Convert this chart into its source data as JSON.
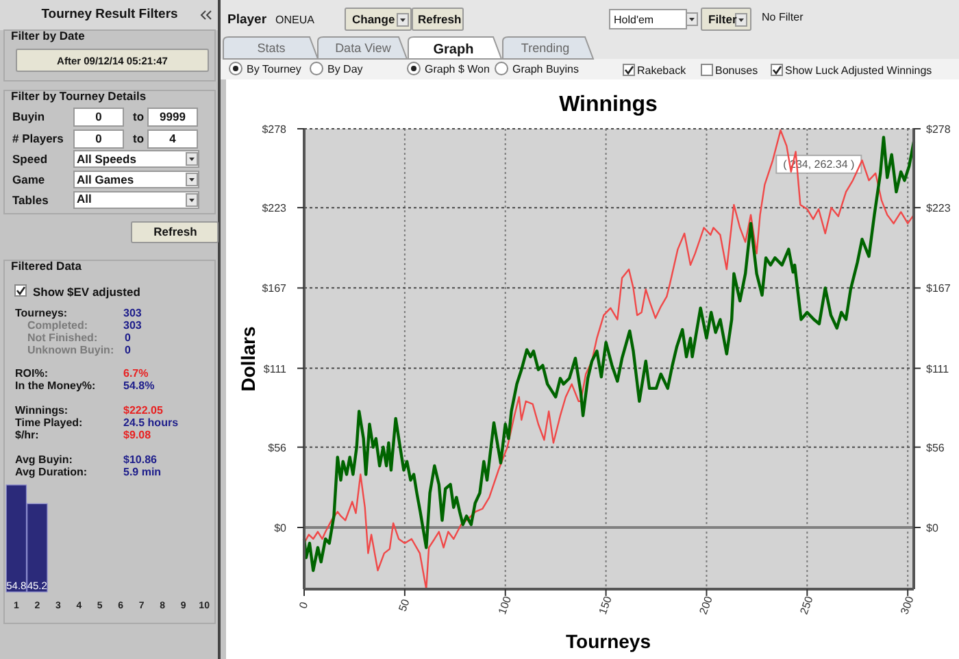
{
  "chart_data": [
    {
      "type": "line",
      "title": "Winnings",
      "xlabel": "Tourneys",
      "ylabel": "Dollars",
      "xlim": [
        0,
        303
      ],
      "xticks": [
        0,
        50,
        100,
        150,
        200,
        250,
        300
      ],
      "ylim": [
        -43,
        278
      ],
      "yticks": [
        {
          "value": 0,
          "label": "$0"
        },
        {
          "value": 56,
          "label": "$56"
        },
        {
          "value": 111,
          "label": "$111"
        },
        {
          "value": 167,
          "label": "$167"
        },
        {
          "value": 223,
          "label": "$223"
        },
        {
          "value": 278,
          "label": "$278"
        }
      ],
      "y2lim": [
        -43,
        278
      ],
      "y2ticks": [
        {
          "value": 0,
          "label": "$0"
        },
        {
          "value": 56,
          "label": "$56"
        },
        {
          "value": 111,
          "label": "$111"
        },
        {
          "value": 167,
          "label": "$167"
        },
        {
          "value": 223,
          "label": "$223"
        },
        {
          "value": 278,
          "label": "$278"
        }
      ],
      "grid": true,
      "ref_lines": [
        {
          "axis": "y",
          "value": 0,
          "color": "#808080"
        }
      ],
      "annotations": [
        {
          "text": "( 234, 262.34 )",
          "x": 234,
          "y": 262.34
        }
      ],
      "series": [
        {
          "color": "#f04848",
          "x": [
            0,
            2.3,
            4.5,
            6.8,
            9,
            10.6,
            13.6,
            16.6,
            18.2,
            20.5,
            23.9,
            25.7,
            28,
            30.2,
            31.8,
            33.4,
            36.6,
            39.8,
            42.5,
            44.3,
            47,
            50,
            53.4,
            57.5,
            60.7,
            62,
            64.8,
            67,
            69.3,
            71.6,
            74.3,
            78,
            80.7,
            85.2,
            88.6,
            92,
            96.6,
            101,
            104.5,
            106.8,
            108,
            110.2,
            113.6,
            116.4,
            119.3,
            121.6,
            123.9,
            127.3,
            130,
            133,
            136.4,
            137.5,
            140,
            143,
            145.5,
            148.9,
            152.3,
            155.7,
            158,
            161.4,
            163.6,
            165.5,
            167.7,
            169.8,
            171.6,
            174.6,
            177.3,
            180.2,
            181.8,
            185.7,
            189,
            192,
            194.3,
            198.7,
            202,
            203.4,
            206.8,
            210,
            213.6,
            216.6,
            219.3,
            222,
            224.9,
            226.6,
            228.9,
            232.9,
            236.8,
            239.8,
            242,
            244.3,
            246.6,
            250,
            253,
            255.7,
            259,
            262,
            265.5,
            269.3,
            272.7,
            277.3,
            280.7,
            284,
            287,
            289.8,
            293,
            296.6,
            300,
            303
          ],
          "values": [
            -11,
            -5,
            -8,
            -3,
            -8,
            -3,
            5,
            11,
            8,
            5,
            18,
            10,
            37,
            14,
            -18,
            -5,
            -30,
            -18,
            -15,
            3,
            -8,
            -11,
            -8,
            -18,
            -43,
            -14,
            -8,
            -3,
            -14,
            -3,
            -8,
            2,
            5,
            11,
            13,
            21,
            40,
            56,
            78,
            91,
            75,
            88,
            86,
            72,
            61,
            81,
            59,
            78,
            91,
            100,
            88,
            88,
            107,
            116,
            132,
            148,
            153,
            145,
            174,
            180,
            167,
            148,
            150,
            166,
            158,
            146,
            154,
            161,
            170,
            194,
            205,
            183,
            191,
            209,
            204,
            209,
            204,
            180,
            225,
            209,
            199,
            218,
            191,
            218,
            239,
            256,
            277,
            266,
            248,
            262,
            225,
            222,
            215,
            222,
            205,
            223,
            217,
            234,
            242,
            256,
            242,
            247,
            228,
            218,
            212,
            220,
            212,
            218
          ]
        },
        {
          "color": "#006400",
          "x": [
            0,
            1,
            2.7,
            4.5,
            6.8,
            8.4,
            10.6,
            12.5,
            14.8,
            16.6,
            18.2,
            19.3,
            21.1,
            22.7,
            24.3,
            26.1,
            27.3,
            29.5,
            30.7,
            32.5,
            34.3,
            35.7,
            37.5,
            39.3,
            40.9,
            42,
            43.2,
            45.5,
            47.7,
            49.5,
            51.1,
            52.9,
            54.5,
            56,
            57.7,
            60.7,
            62.5,
            64.8,
            67,
            68.6,
            70.2,
            72.7,
            74.3,
            75.7,
            77.3,
            78.9,
            80.7,
            83,
            85,
            87.3,
            89.3,
            90.9,
            94.3,
            97.7,
            100,
            101.6,
            103,
            105.7,
            108,
            110.7,
            112.5,
            114,
            116.4,
            118.6,
            120.9,
            125,
            127.3,
            128.9,
            131.8,
            134.8,
            137.5,
            138.6,
            141,
            143,
            145.5,
            147.7,
            150,
            153,
            155.7,
            158,
            161.8,
            163.6,
            166.6,
            169.8,
            171.6,
            175,
            177.3,
            180.7,
            183,
            185.2,
            188,
            190,
            192,
            192.9,
            197,
            200,
            202.3,
            204.5,
            206.8,
            210,
            212.5,
            213.6,
            216.6,
            219.3,
            222,
            224.9,
            227.6,
            229.5,
            231.8,
            234,
            237.5,
            240.8,
            243,
            243.8,
            247,
            250,
            253.4,
            256,
            259,
            261.8,
            264.8,
            267,
            269.3,
            271.6,
            275,
            277.3,
            280.7,
            283.4,
            286.4,
            288,
            289.8,
            292,
            294.3,
            296.6,
            298.4,
            300.7,
            303
          ],
          "values": [
            -8,
            -21,
            -11,
            -30,
            -14,
            -24,
            -8,
            -11,
            8,
            49,
            33,
            46,
            37,
            49,
            37,
            56,
            81,
            62,
            37,
            72,
            56,
            62,
            43,
            56,
            43,
            59,
            40,
            76,
            56,
            40,
            46,
            33,
            37,
            24,
            11,
            -14,
            24,
            43,
            30,
            5,
            27,
            30,
            14,
            21,
            11,
            2,
            8,
            2,
            17,
            24,
            46,
            33,
            73,
            45,
            72,
            62,
            81,
            100,
            110,
            124,
            119,
            123,
            110,
            113,
            100,
            91,
            104,
            100,
            104,
            118,
            94,
            78,
            104,
            116,
            123,
            105,
            129,
            113,
            102,
            118,
            137,
            123,
            88,
            116,
            97,
            97,
            107,
            97,
            113,
            126,
            138,
            119,
            132,
            119,
            153,
            132,
            150,
            136,
            145,
            121,
            145,
            177,
            158,
            177,
            212,
            177,
            162,
            188,
            183,
            188,
            183,
            194,
            178,
            183,
            145,
            150,
            145,
            142,
            167,
            148,
            139,
            150,
            145,
            166,
            185,
            201,
            189,
            218,
            247,
            272,
            244,
            260,
            234,
            248,
            242,
            252,
            269
          ]
        }
      ]
    },
    {
      "type": "bar",
      "categories": [
        "1",
        "2",
        "3",
        "4",
        "5",
        "6",
        "7",
        "8",
        "9",
        "10"
      ],
      "values": [
        54.8,
        45.2,
        null,
        null,
        null,
        null,
        null,
        null,
        null,
        null
      ],
      "color": "#2b2a7a",
      "data_labels": true
    },
    {
      "type": "other",
      "annotations": [
        "Tourney Result Filters",
        "Filter by Date",
        "After 09/12/14 05:21:47",
        "Filter by Tourney Details",
        "Buyin",
        "0",
        "to",
        "9999",
        "# Players",
        "0",
        "to",
        "4",
        "Speed",
        "All Speeds",
        "Game",
        "All Games",
        "Tables",
        "All",
        "Refresh",
        "Filtered Data",
        "Show $EV adjusted",
        "Tourneys:",
        "303",
        "Completed:",
        "303",
        "Not Finished:",
        "0",
        "Unknown Buyin:",
        "0",
        "ROI%:",
        "6.7%",
        "In the Money%:",
        "54.8%",
        "Winnings:",
        "$222.05",
        "Time Played:",
        "24.5 hours",
        "$/hr:",
        "$9.08",
        "Avg Buyin:",
        "$10.86",
        "Avg Duration:",
        "5.9 min",
        "Player",
        "ONEUA",
        "Change",
        "Refresh",
        "Hold'em",
        "Filter",
        "No Filter",
        "Stats",
        "Data View",
        "Graph",
        "Trending",
        "By Tourney",
        "By Day",
        "Graph $ Won",
        "Graph Buyins",
        "Rakeback",
        "Bonuses",
        "Show Luck Adjusted Winnings"
      ]
    }
  ]
}
